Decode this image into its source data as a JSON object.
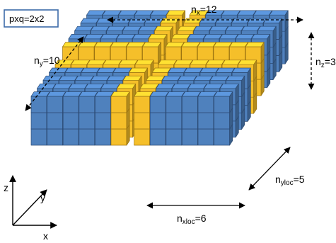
{
  "legend": {
    "text": "pxq=2x2"
  },
  "labels": {
    "nx": {
      "base": "n",
      "sub": "x",
      "value": "=12"
    },
    "ny": {
      "base": "n",
      "sub": "y",
      "value": "=10"
    },
    "nz": {
      "base": "n",
      "sub": "z",
      "value": "=3"
    },
    "nxloc": {
      "base": "n",
      "sub": "xloc",
      "value": "=6"
    },
    "nyloc": {
      "base": "n",
      "sub": "yloc",
      "value": "=5"
    }
  },
  "axes": {
    "x": "x",
    "y": "y",
    "z": "z"
  },
  "grid": {
    "nx": 12,
    "ny": 10,
    "nz": 3,
    "process_grid": [
      2,
      2
    ],
    "colors": {
      "block": "#4f81bd",
      "boundary": "#f5bf2a",
      "edge": "#2c4b74",
      "boundary_edge": "#9c7410"
    }
  }
}
